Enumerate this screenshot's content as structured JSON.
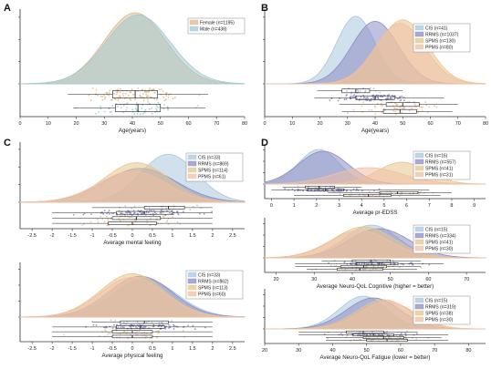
{
  "colors": {
    "cis": "#a9c6dc",
    "rrms": "#8c8cc4",
    "spms": "#e6c48c",
    "ppms": "#f0c0a4",
    "female": "#e2b888",
    "male": "#9fcbd4"
  },
  "chart_data": [
    {
      "id": "A",
      "panel_label": "A",
      "type": "raincloud",
      "xlabel": "Age(years)",
      "xlim": [
        0,
        80
      ],
      "xticks": [
        0,
        10,
        20,
        30,
        40,
        50,
        60,
        70,
        80
      ],
      "xticklabels": [
        "0",
        "10",
        "20",
        "30",
        "40",
        "50",
        "60",
        "70",
        "80"
      ],
      "series": [
        {
          "name": "Female (n=1195)",
          "key": "female",
          "mean": 41,
          "sd": 11,
          "min": 17,
          "max": 67,
          "q1": 33,
          "median": 41,
          "q3": 49,
          "n": 1195,
          "peak": 1.0
        },
        {
          "name": "Male (n=438)",
          "key": "male",
          "mean": 42,
          "sd": 11.5,
          "min": 19,
          "max": 66,
          "q1": 34,
          "median": 42,
          "q3": 50,
          "n": 438,
          "peak": 0.97
        }
      ]
    },
    {
      "id": "B",
      "panel_label": "B",
      "type": "raincloud",
      "xlabel": "Age(years)",
      "xlim": [
        0,
        80
      ],
      "xticks": [
        0,
        10,
        20,
        30,
        40,
        50,
        60,
        70,
        80
      ],
      "xticklabels": [
        "0",
        "10",
        "20",
        "30",
        "40",
        "50",
        "60",
        "70",
        "80"
      ],
      "series": [
        {
          "name": "CIS (n=41)",
          "key": "cis",
          "mean": 33,
          "sd": 7,
          "min": 19,
          "max": 50,
          "q1": 28,
          "median": 33,
          "q3": 38,
          "n": 41,
          "peak": 0.95
        },
        {
          "name": "RRMS (n=1037)",
          "key": "rrms",
          "mean": 40,
          "sd": 8.5,
          "min": 18,
          "max": 65,
          "q1": 33,
          "median": 40,
          "q3": 47,
          "n": 1037,
          "peak": 0.88
        },
        {
          "name": "SPMS (n=130)",
          "key": "spms",
          "mean": 50,
          "sd": 9,
          "min": 27,
          "max": 70,
          "q1": 44,
          "median": 50,
          "q3": 56,
          "n": 130,
          "peak": 0.9
        },
        {
          "name": "PPMS (n=80)",
          "key": "ppms",
          "mean": 49,
          "sd": 9,
          "min": 28,
          "max": 68,
          "q1": 43,
          "median": 49,
          "q3": 55,
          "n": 80,
          "peak": 0.85
        }
      ]
    },
    {
      "id": "C1",
      "panel_label": "C",
      "type": "raincloud",
      "xlabel": "Average mental feeling",
      "xlim": [
        -2.8,
        2.8
      ],
      "xticks": [
        -2.5,
        -2,
        -1.5,
        -1,
        -0.5,
        0,
        0.5,
        1,
        1.5,
        2,
        2.5
      ],
      "xticklabels": [
        "-2.5",
        "-2",
        "-1.5",
        "-1",
        "-0.5",
        "0",
        "0.5",
        "1",
        "1.5",
        "2",
        "2.5"
      ],
      "series": [
        {
          "name": "CIS (n=33)",
          "key": "cis",
          "mean": 0.9,
          "sd": 0.7,
          "min": -1,
          "max": 2,
          "q1": 0.3,
          "median": 0.9,
          "q3": 1.3,
          "n": 33,
          "peak": 0.85
        },
        {
          "name": "RRMS (n=869)",
          "key": "rrms",
          "mean": 0.2,
          "sd": 0.9,
          "min": -2,
          "max": 2,
          "q1": -0.4,
          "median": 0.3,
          "q3": 1.0,
          "n": 869,
          "peak": 0.6
        },
        {
          "name": "SPMS (n=114)",
          "key": "spms",
          "mean": 0.1,
          "sd": 0.8,
          "min": -2,
          "max": 2,
          "q1": -0.5,
          "median": 0.1,
          "q3": 0.7,
          "n": 114,
          "peak": 0.7
        },
        {
          "name": "PPMS (n=61)",
          "key": "ppms",
          "mean": 0.0,
          "sd": 0.85,
          "min": -2,
          "max": 2,
          "q1": -0.6,
          "median": 0.0,
          "q3": 0.6,
          "n": 61,
          "peak": 0.55
        }
      ]
    },
    {
      "id": "C2",
      "panel_label": "",
      "type": "raincloud",
      "xlabel": "Average physical feeling",
      "xlim": [
        -2.8,
        2.8
      ],
      "xticks": [
        -2.5,
        -2,
        -1.5,
        -1,
        -0.5,
        0,
        0.5,
        1,
        1.5,
        2,
        2.5
      ],
      "xticklabels": [
        "-2.5",
        "-2",
        "-1.5",
        "-1",
        "-0.5",
        "0",
        "0.5",
        "1",
        "1.5",
        "2",
        "2.5"
      ],
      "series": [
        {
          "name": "CIS (n=33)",
          "key": "cis",
          "mean": 0.3,
          "sd": 0.8,
          "min": -1,
          "max": 2,
          "q1": -0.3,
          "median": 0.3,
          "q3": 0.9,
          "n": 33,
          "peak": 0.75
        },
        {
          "name": "RRMS (n=862)",
          "key": "rrms",
          "mean": 0.2,
          "sd": 0.8,
          "min": -2,
          "max": 2,
          "q1": -0.4,
          "median": 0.2,
          "q3": 0.8,
          "n": 862,
          "peak": 0.8
        },
        {
          "name": "SPMS (n=113)",
          "key": "spms",
          "mean": 0.0,
          "sd": 0.8,
          "min": -2,
          "max": 2,
          "q1": -0.5,
          "median": 0.0,
          "q3": 0.5,
          "n": 113,
          "peak": 0.85
        },
        {
          "name": "PPMS (n=60)",
          "key": "ppms",
          "mean": 0.0,
          "sd": 0.8,
          "min": -2,
          "max": 2,
          "q1": -0.5,
          "median": 0.0,
          "q3": 0.5,
          "n": 60,
          "peak": 0.78
        }
      ]
    },
    {
      "id": "D1",
      "panel_label": "D",
      "type": "raincloud",
      "xlabel": "Average pr-EDSS",
      "xlim": [
        -0.3,
        9.5
      ],
      "xticks": [
        0,
        1,
        2,
        3,
        4,
        5,
        6,
        7,
        8,
        9
      ],
      "xticklabels": [
        "0",
        "1",
        "2",
        "3",
        "4",
        "5",
        "6",
        "7",
        "8",
        "9"
      ],
      "series": [
        {
          "name": "CIS (n=16)",
          "key": "cis",
          "mean": 2.1,
          "sd": 0.9,
          "min": 0.5,
          "max": 4,
          "q1": 1.5,
          "median": 2.1,
          "q3": 2.8,
          "n": 16,
          "peak": 0.95
        },
        {
          "name": "RRMS (n=557)",
          "key": "rrms",
          "mean": 2.3,
          "sd": 1.1,
          "min": 0,
          "max": 7,
          "q1": 1.6,
          "median": 2.4,
          "q3": 3.2,
          "n": 557,
          "peak": 0.9
        },
        {
          "name": "SPMS (n=41)",
          "key": "spms",
          "mean": 5.8,
          "sd": 1.1,
          "min": 2.5,
          "max": 8,
          "q1": 4.8,
          "median": 5.6,
          "q3": 6.5,
          "n": 41,
          "peak": 0.6
        },
        {
          "name": "PPMS (n=31)",
          "key": "ppms",
          "mean": 4.3,
          "sd": 1.5,
          "min": 1,
          "max": 7.5,
          "q1": 3.2,
          "median": 4.3,
          "q3": 5.3,
          "n": 31,
          "peak": 0.45
        }
      ]
    },
    {
      "id": "D2",
      "panel_label": "",
      "type": "raincloud",
      "xlabel": "Average Neuro-QoL Cognitive (higher = better)",
      "xlim": [
        17,
        75
      ],
      "xticks": [
        20,
        30,
        40,
        50,
        60,
        70
      ],
      "xticklabels": [
        "20",
        "30",
        "40",
        "50",
        "60",
        "70"
      ],
      "series": [
        {
          "name": "CIS (n=15)",
          "key": "cis",
          "mean": 45,
          "sd": 7,
          "min": 32,
          "max": 58,
          "q1": 40,
          "median": 45,
          "q3": 50,
          "n": 15,
          "peak": 0.9
        },
        {
          "name": "RRMS (n=334)",
          "key": "rrms",
          "mean": 47,
          "sd": 8,
          "min": 25,
          "max": 64,
          "q1": 41,
          "median": 47,
          "q3": 52,
          "n": 334,
          "peak": 0.8
        },
        {
          "name": "SPMS (n=41)",
          "key": "spms",
          "mean": 43,
          "sd": 8,
          "min": 25,
          "max": 58,
          "q1": 37,
          "median": 43,
          "q3": 49,
          "n": 41,
          "peak": 0.85
        },
        {
          "name": "PPMS (n=30)",
          "key": "ppms",
          "mean": 42,
          "sd": 8,
          "min": 28,
          "max": 57,
          "q1": 36,
          "median": 42,
          "q3": 48,
          "n": 30,
          "peak": 0.75
        }
      ]
    },
    {
      "id": "D3",
      "panel_label": "",
      "type": "raincloud",
      "xlabel": "Average Neuro-QoL Fatigue (lower = better)",
      "xlim": [
        20,
        85
      ],
      "xticks": [
        20,
        30,
        40,
        50,
        60,
        70,
        80
      ],
      "xticklabels": [
        "20",
        "30",
        "40",
        "50",
        "60",
        "70",
        "80"
      ],
      "series": [
        {
          "name": "CIS (n=15)",
          "key": "cis",
          "mean": 49,
          "sd": 7,
          "min": 30,
          "max": 65,
          "q1": 44,
          "median": 49,
          "q3": 55,
          "n": 15,
          "peak": 0.9
        },
        {
          "name": "RRMS (n=319)",
          "key": "rrms",
          "mean": 52,
          "sd": 8,
          "min": 30,
          "max": 74,
          "q1": 46,
          "median": 52,
          "q3": 58,
          "n": 319,
          "peak": 0.85
        },
        {
          "name": "SPMS (n=38)",
          "key": "spms",
          "mean": 55,
          "sd": 8,
          "min": 38,
          "max": 72,
          "q1": 49,
          "median": 55,
          "q3": 61,
          "n": 38,
          "peak": 0.8
        },
        {
          "name": "PPMS (n=30)",
          "key": "ppms",
          "mean": 56,
          "sd": 8,
          "min": 38,
          "max": 74,
          "q1": 50,
          "median": 56,
          "q3": 62,
          "n": 30,
          "peak": 0.75
        }
      ]
    }
  ]
}
